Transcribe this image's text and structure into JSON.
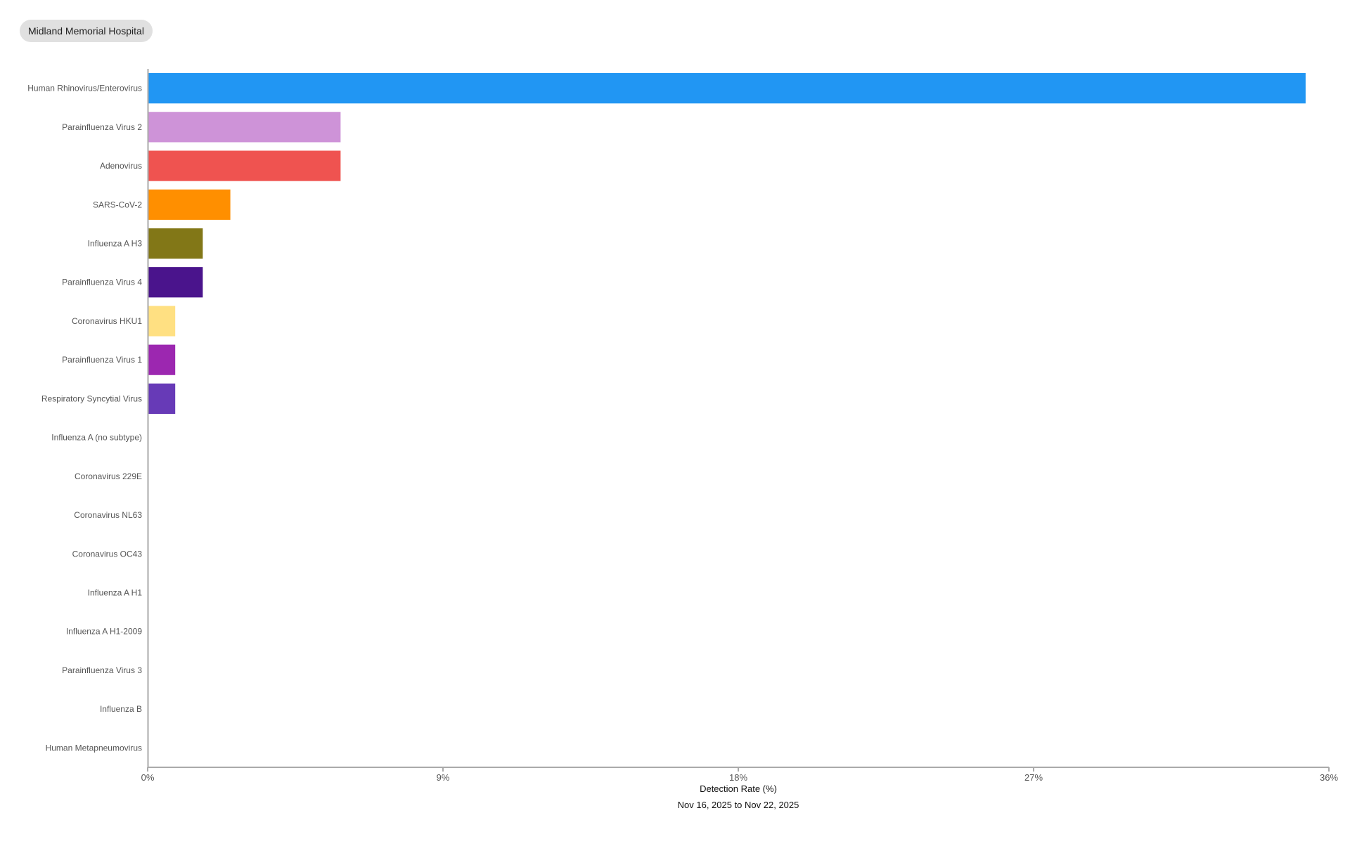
{
  "header": {
    "location": "Midland Memorial Hospital"
  },
  "chart_data": {
    "type": "bar",
    "orientation": "horizontal",
    "categories": [
      "Human Rhinovirus/Enterovirus",
      "Parainfluenza Virus 2",
      "Adenovirus",
      "SARS-CoV-2",
      "Influenza A H3",
      "Parainfluenza Virus 4",
      "Coronavirus HKU1",
      "Parainfluenza Virus 1",
      "Respiratory Syncytial Virus",
      "Influenza A (no subtype)",
      "Coronavirus 229E",
      "Coronavirus NL63",
      "Coronavirus OC43",
      "Influenza A H1",
      "Influenza A H1-2009",
      "Parainfluenza Virus 3",
      "Influenza B",
      "Human Metapneumovirus"
    ],
    "values": [
      35.29,
      5.88,
      5.88,
      2.52,
      1.68,
      1.68,
      0.84,
      0.84,
      0.84,
      0,
      0,
      0,
      0,
      0,
      0,
      0,
      0,
      0
    ],
    "colors": [
      "#2196F3",
      "#CE93D8",
      "#EF5350",
      "#FF8F00",
      "#827717",
      "#4A148C",
      "#FFE082",
      "#9C27B0",
      "#673AB7",
      "#cccccc",
      "#cccccc",
      "#cccccc",
      "#cccccc",
      "#cccccc",
      "#cccccc",
      "#cccccc",
      "#cccccc",
      "#cccccc"
    ],
    "xlabel": "Detection Rate (%)",
    "subtitle": "Nov 16, 2025 to Nov 22, 2025",
    "xlim": [
      0,
      36
    ],
    "xticks": [
      "0%",
      "9%",
      "18%",
      "27%",
      "36%"
    ],
    "grid": false
  }
}
